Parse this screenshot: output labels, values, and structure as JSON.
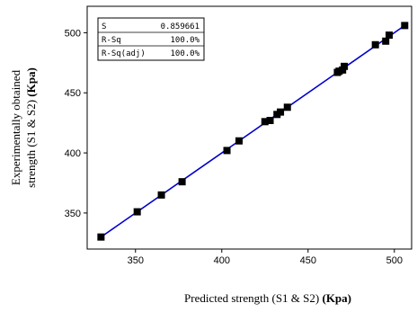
{
  "chart_data": {
    "type": "scatter",
    "xlabel_main": "Predicted strength (S1 & S2) ",
    "xlabel_unit": "(Kpa)",
    "ylabel_line1": "Experimentally obtained",
    "ylabel_line2_main": "strength (S1 & S2) ",
    "ylabel_line2_unit": "(Kpa)",
    "xlim": [
      322,
      510
    ],
    "ylim": [
      320,
      522
    ],
    "xticks": [
      350,
      400,
      450,
      500
    ],
    "yticks": [
      350,
      400,
      450,
      500
    ],
    "grid": false,
    "marker_color": "#000000",
    "fit_line": {
      "x": [
        330,
        506
      ],
      "y": [
        330,
        506
      ],
      "color": "#0000cc"
    },
    "points": [
      {
        "x": 330,
        "y": 330
      },
      {
        "x": 351,
        "y": 351
      },
      {
        "x": 365,
        "y": 365
      },
      {
        "x": 377,
        "y": 376
      },
      {
        "x": 403,
        "y": 402
      },
      {
        "x": 410,
        "y": 410
      },
      {
        "x": 425,
        "y": 426
      },
      {
        "x": 428,
        "y": 427
      },
      {
        "x": 432,
        "y": 432
      },
      {
        "x": 434,
        "y": 434
      },
      {
        "x": 438,
        "y": 438
      },
      {
        "x": 467,
        "y": 467
      },
      {
        "x": 468,
        "y": 468
      },
      {
        "x": 470,
        "y": 469
      },
      {
        "x": 471,
        "y": 472
      },
      {
        "x": 489,
        "y": 490
      },
      {
        "x": 495,
        "y": 493
      },
      {
        "x": 497,
        "y": 498
      },
      {
        "x": 506,
        "y": 506
      }
    ],
    "stats": [
      {
        "label": "S",
        "value": "0.859661"
      },
      {
        "label": "R-Sq",
        "value": "100.0%"
      },
      {
        "label": "R-Sq(adj)",
        "value": "100.0%"
      }
    ]
  }
}
